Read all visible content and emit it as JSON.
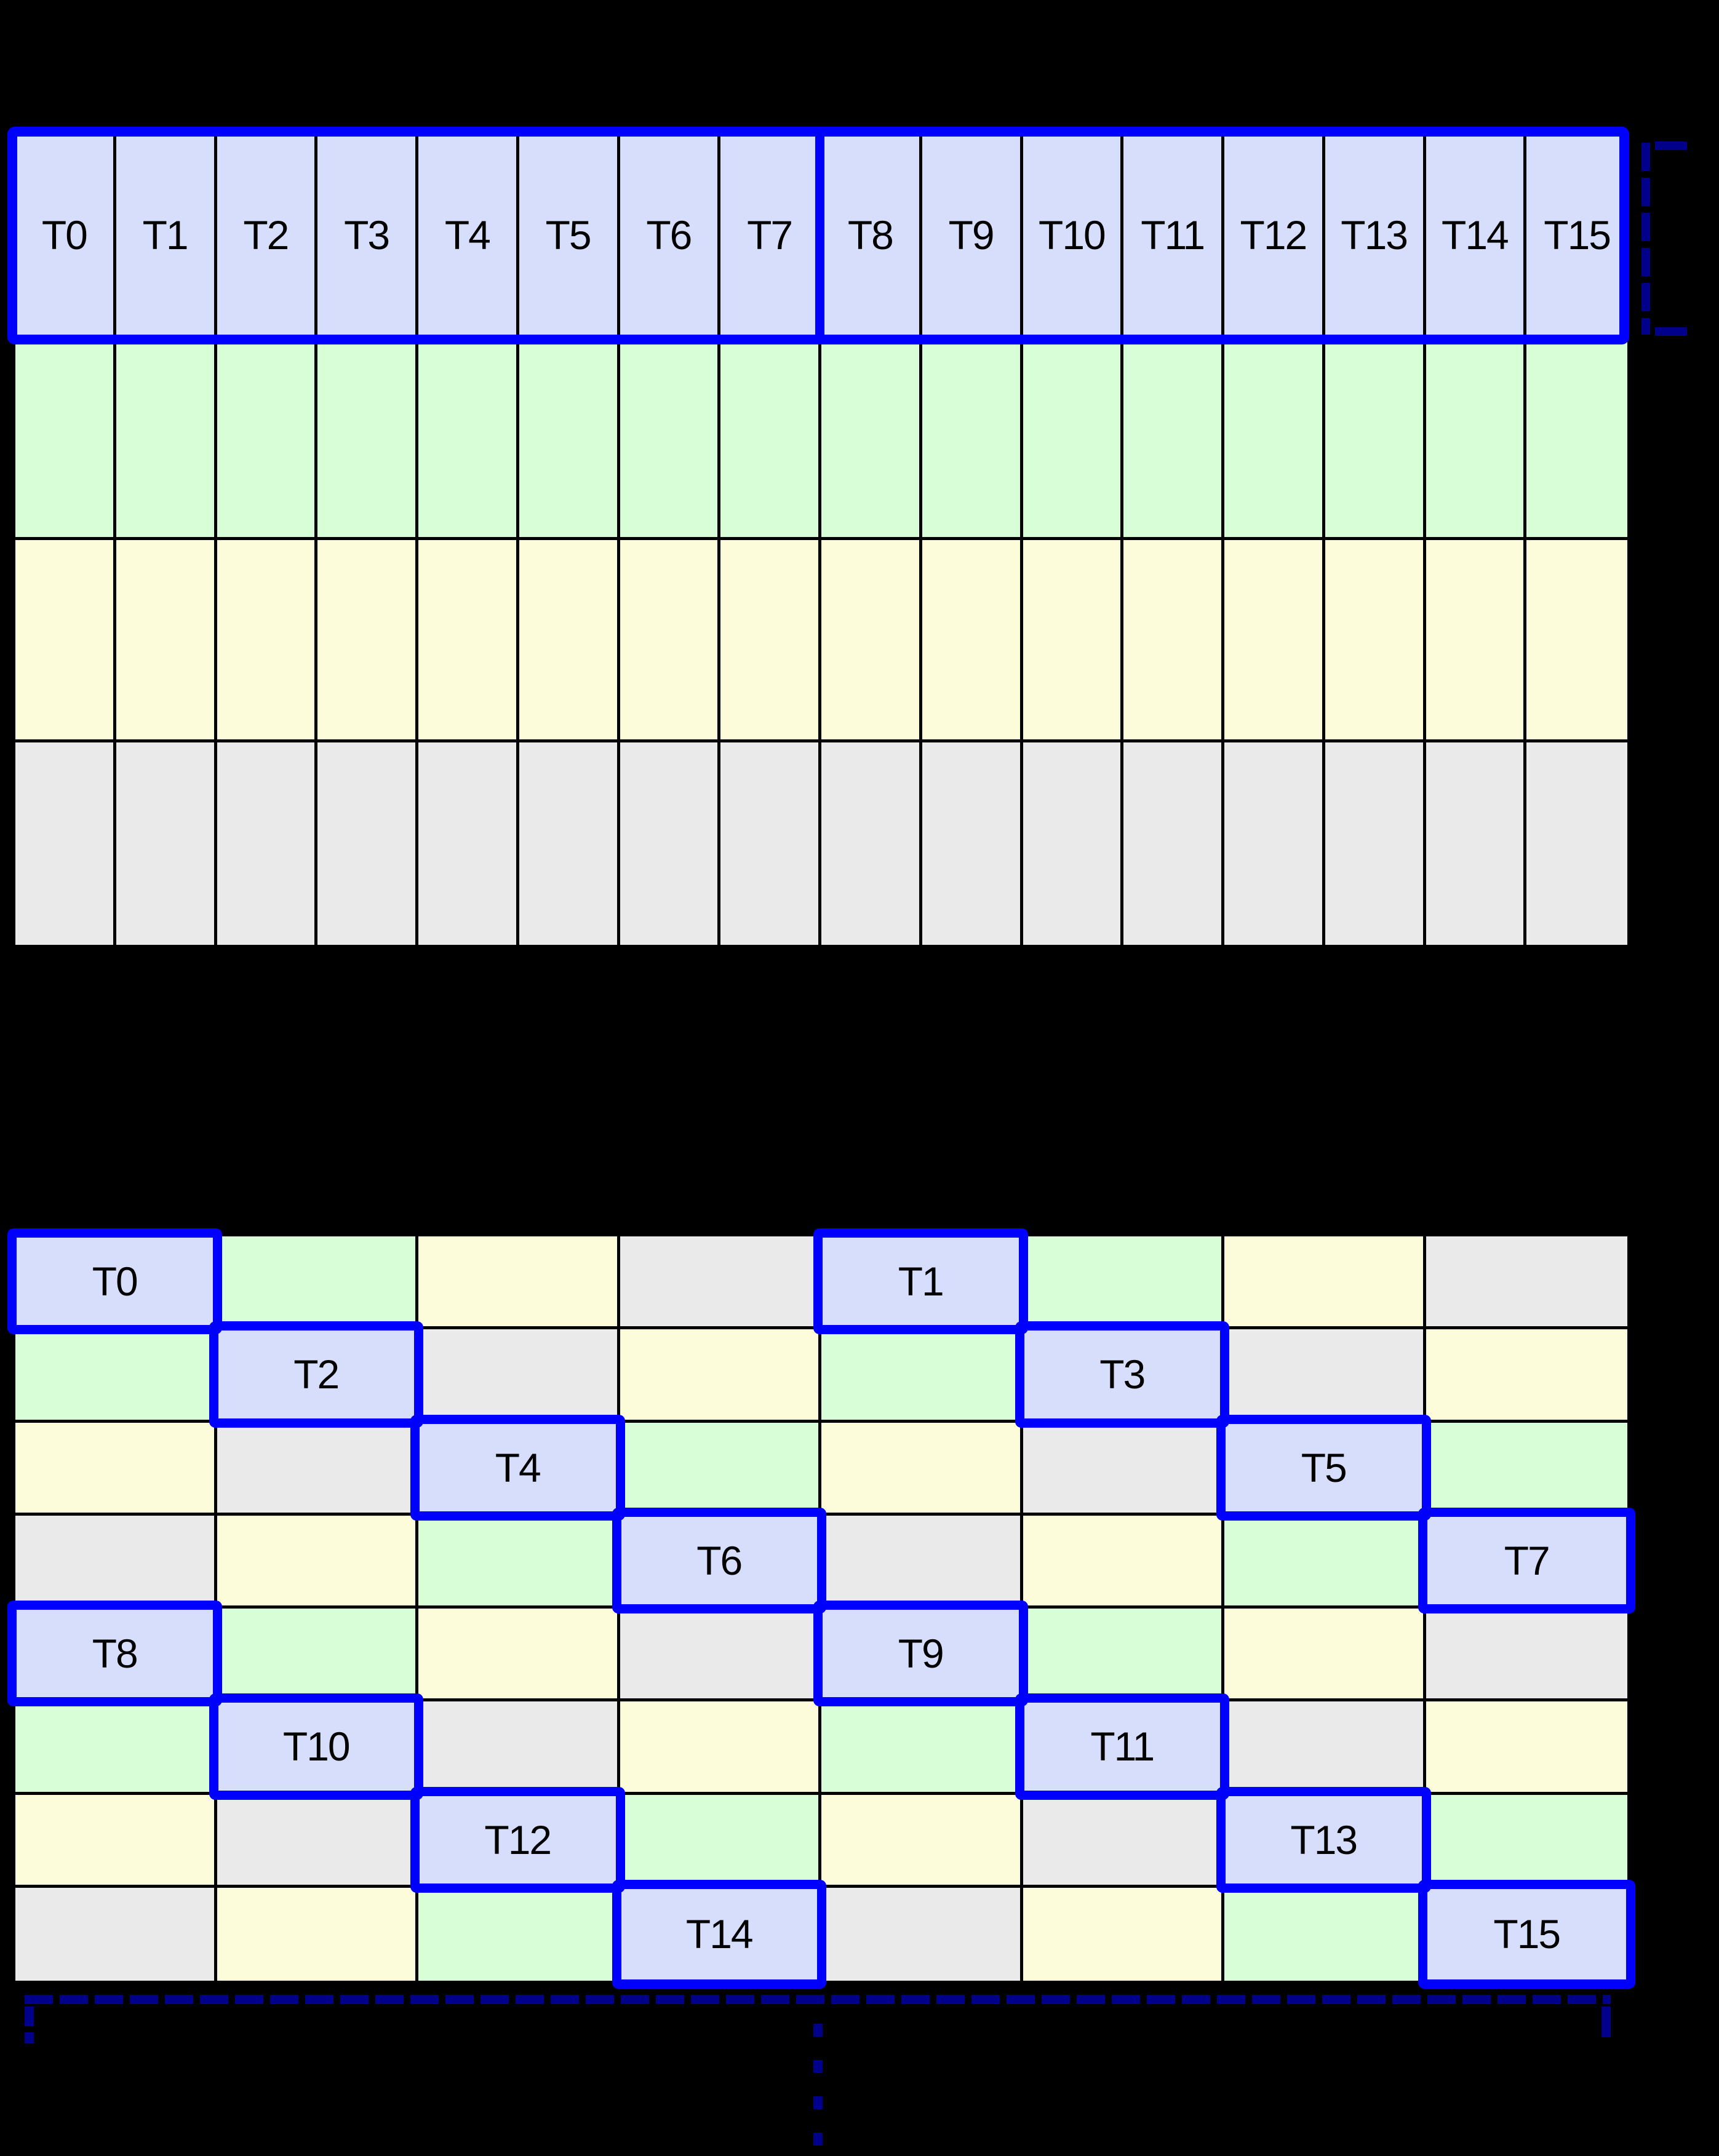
{
  "page": {
    "background": "#000000"
  },
  "colors": {
    "thread_cell": "#d6defb",
    "cell_green": "#d7fed7",
    "cell_yellow": "#fcfcda",
    "cell_gray": "#eaeaea",
    "highlight_border": "#0000ff",
    "bracket": "#00008b",
    "grid_line": "#000000",
    "label_text": "#000000"
  },
  "top_table": {
    "columns": 16,
    "rows": 4,
    "thread_labels": [
      "T0",
      "T1",
      "T2",
      "T3",
      "T4",
      "T5",
      "T6",
      "T7",
      "T8",
      "T9",
      "T10",
      "T11",
      "T12",
      "T13",
      "T14",
      "T15"
    ],
    "header_row_color": "thread_cell",
    "data_row_colors": [
      "cell_green",
      "cell_yellow",
      "cell_gray"
    ],
    "half_warp_split_after_column": 8
  },
  "bottom_table": {
    "rows": 8,
    "columns": 8,
    "color_cycle": [
      "thread_cell",
      "cell_green",
      "cell_yellow",
      "cell_gray"
    ],
    "color_rule": "palette[(row%4) xor (col%4)]",
    "threads": [
      {
        "label": "T0",
        "row": 0,
        "col": 0
      },
      {
        "label": "T1",
        "row": 0,
        "col": 4
      },
      {
        "label": "T2",
        "row": 1,
        "col": 1
      },
      {
        "label": "T3",
        "row": 1,
        "col": 5
      },
      {
        "label": "T4",
        "row": 2,
        "col": 2
      },
      {
        "label": "T5",
        "row": 2,
        "col": 6
      },
      {
        "label": "T6",
        "row": 3,
        "col": 3
      },
      {
        "label": "T7",
        "row": 3,
        "col": 7
      },
      {
        "label": "T8",
        "row": 4,
        "col": 0
      },
      {
        "label": "T9",
        "row": 4,
        "col": 4
      },
      {
        "label": "T10",
        "row": 5,
        "col": 1
      },
      {
        "label": "T11",
        "row": 5,
        "col": 5
      },
      {
        "label": "T12",
        "row": 6,
        "col": 2
      },
      {
        "label": "T13",
        "row": 6,
        "col": 6
      },
      {
        "label": "T14",
        "row": 7,
        "col": 3
      },
      {
        "label": "T15",
        "row": 7,
        "col": 7
      }
    ]
  },
  "annotations": {
    "warp_bracket": {
      "position": "right-of-top-header-row",
      "style": "dashed-bracket-opening-right"
    },
    "bottom_bracket": {
      "position": "below-bottom-table",
      "style": "dashed-bracket-opening-down"
    },
    "continuation_dots": {
      "position": "below-bottom-bracket-center",
      "style": "vertical-dashed"
    }
  }
}
